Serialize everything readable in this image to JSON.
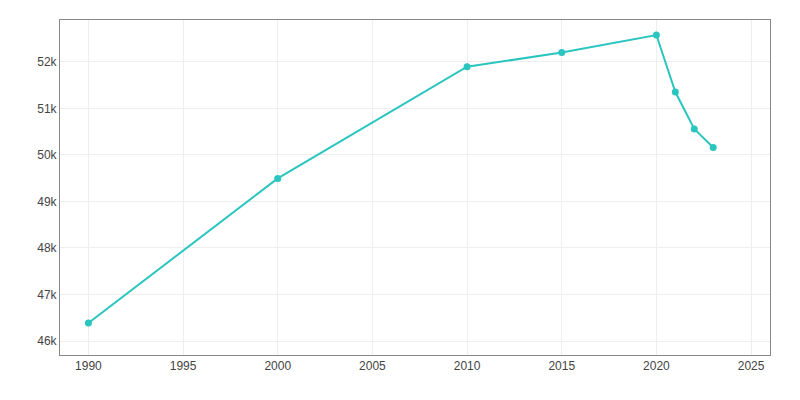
{
  "chart_data": {
    "type": "line",
    "x": [
      1990,
      2000,
      2010,
      2015,
      2020,
      2021,
      2022,
      2023
    ],
    "values": [
      46388,
      49495,
      51895,
      52200,
      52577,
      51352,
      50557,
      50160
    ],
    "color": "#2bc5c0",
    "marker": "circle",
    "xlim": [
      1988.5,
      2026
    ],
    "xticks": [
      1990,
      1995,
      2000,
      2005,
      2010,
      2015,
      2020,
      2025
    ],
    "ylim": [
      45700,
      52900
    ],
    "yticks": [
      {
        "value": 46000,
        "label": "46k"
      },
      {
        "value": 47000,
        "label": "47k"
      },
      {
        "value": 48000,
        "label": "48k"
      },
      {
        "value": 49000,
        "label": "49k"
      },
      {
        "value": 50000,
        "label": "50k"
      },
      {
        "value": 51000,
        "label": "51k"
      },
      {
        "value": 52000,
        "label": "52k"
      }
    ],
    "grid": true
  }
}
